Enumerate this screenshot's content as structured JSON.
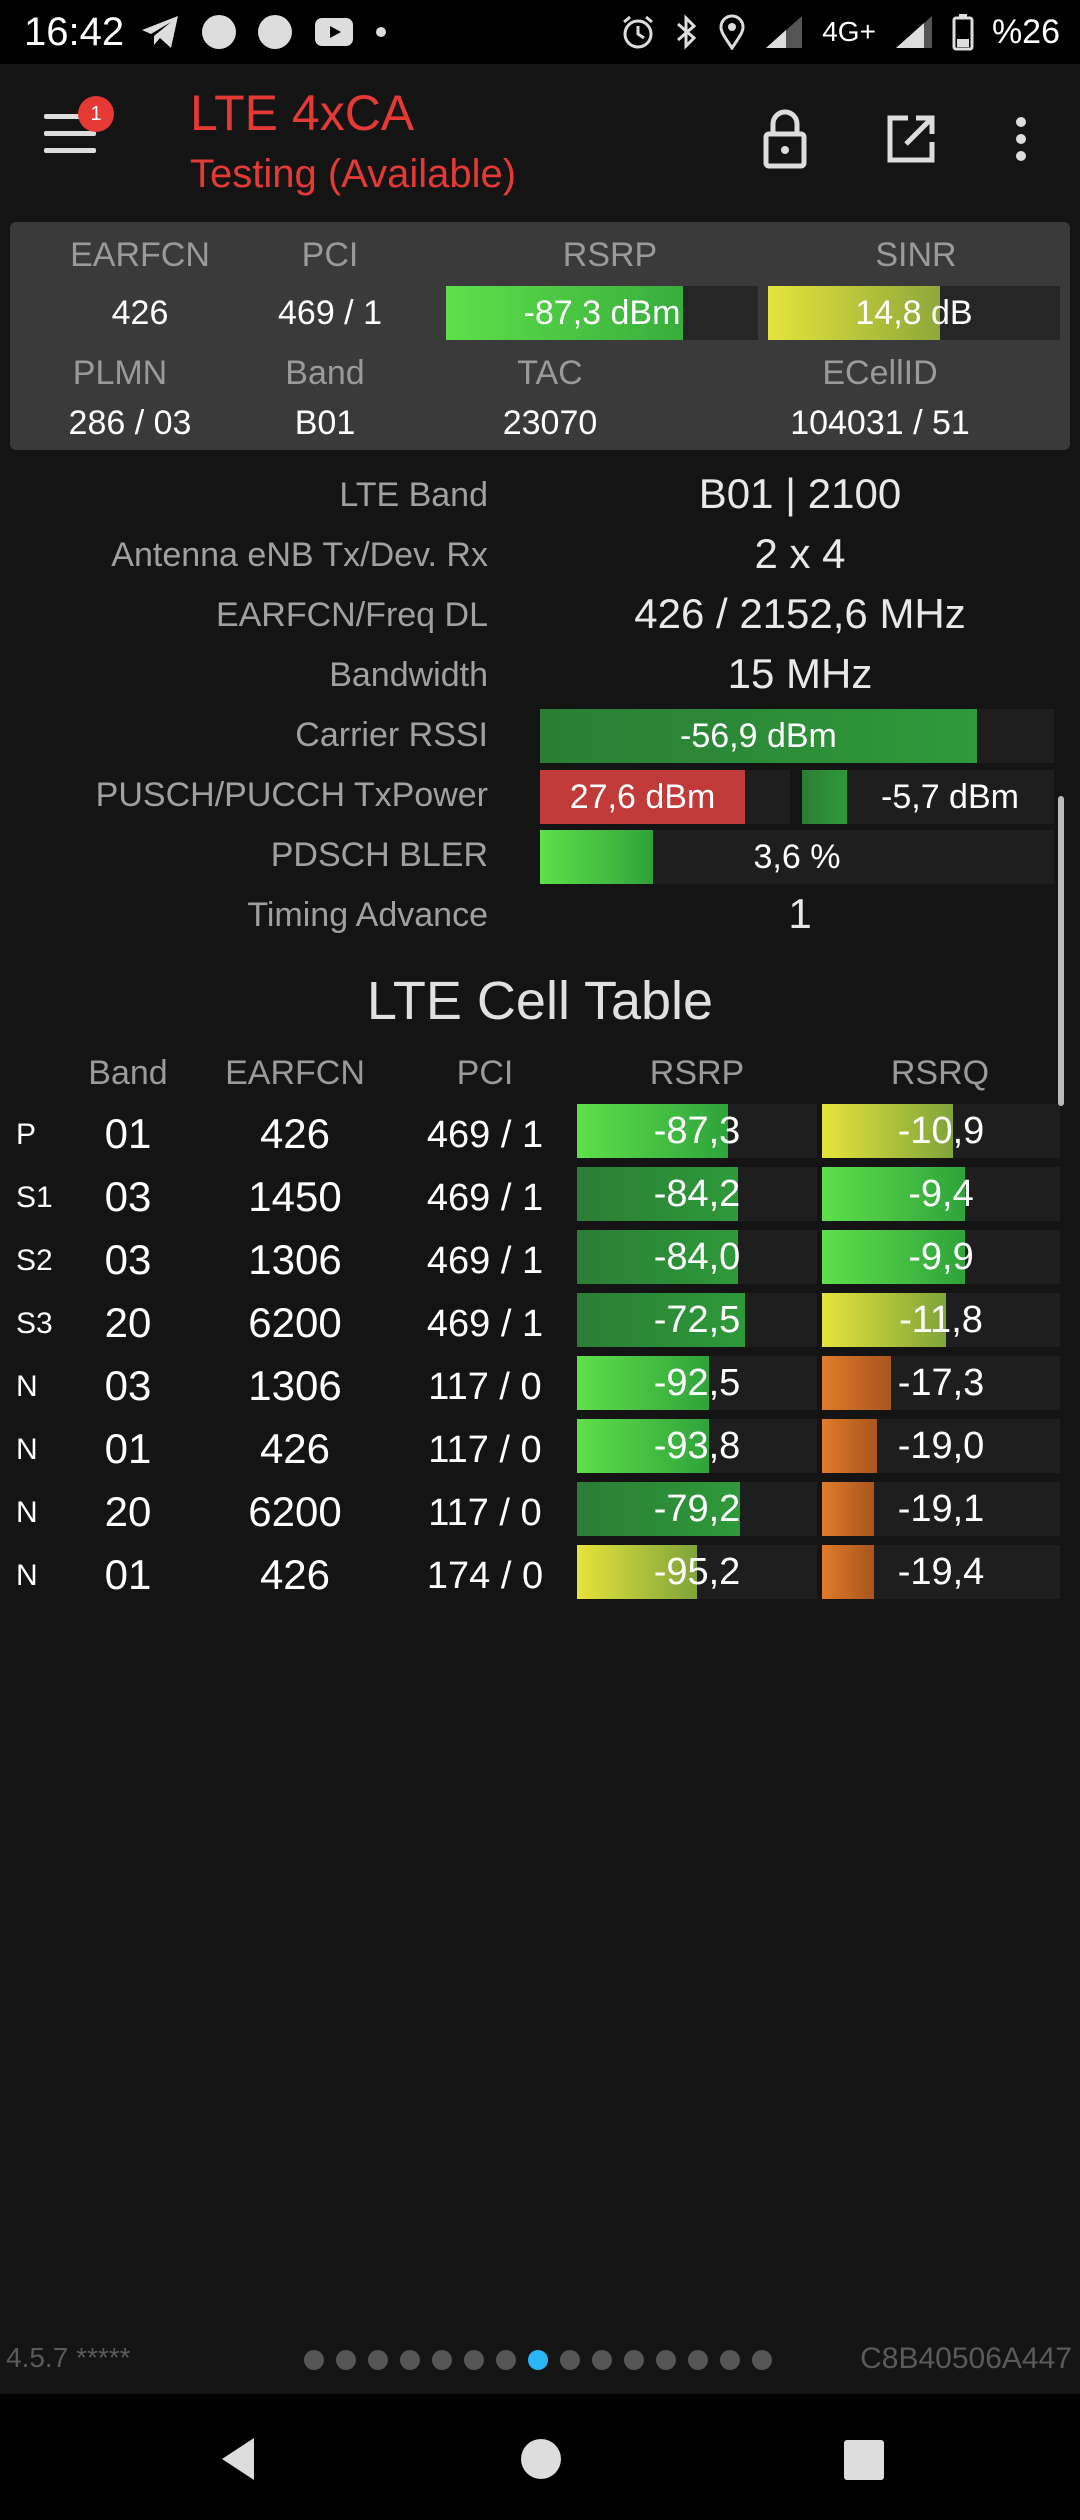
{
  "status_bar": {
    "time": "16:42",
    "network_label": "4G+",
    "battery_text": "%26",
    "icons": [
      "telegram-icon",
      "notification-dot-icon",
      "notification-dot-icon",
      "youtube-icon",
      "more-dot-icon",
      "alarm-icon",
      "bluetooth-icon",
      "location-icon",
      "signal-icon",
      "battery-icon"
    ]
  },
  "app_bar": {
    "title": "LTE 4xCA",
    "subtitle": "Testing (Available)",
    "notification_count": "1",
    "title_color": "#e53935"
  },
  "summary": {
    "headers": {
      "earfcn": "EARFCN",
      "pci": "PCI",
      "rsrp": "RSRP",
      "sinr": "SINR",
      "plmn": "PLMN",
      "band": "Band",
      "tac": "TAC",
      "ecellid": "ECellID"
    },
    "earfcn": "426",
    "pci": "469 / 1",
    "rsrp": "-87,3 dBm",
    "rsrp_fill": 0.76,
    "sinr": "14,8 dB",
    "sinr_fill": 0.59,
    "plmn": "286 / 03",
    "band": "B01",
    "tac": "23070",
    "ecellid": "104031 / 51"
  },
  "details": {
    "lte_band_label": "LTE Band",
    "lte_band": "B01 | 2100",
    "antenna_label": "Antenna eNB Tx/Dev. Rx",
    "antenna": "2 x 4",
    "freq_label": "EARFCN/Freq DL",
    "freq": "426 / 2152,6 MHz",
    "bandwidth_label": "Bandwidth",
    "bandwidth": "15 MHz",
    "rssi_label": "Carrier RSSI",
    "rssi": "-56,9 dBm",
    "rssi_fill": 0.85,
    "txpower_label": "PUSCH/PUCCH TxPower",
    "pusch": "27,6 dBm",
    "pusch_fill": 0.82,
    "pucch": "-5,7 dBm",
    "pucch_fill": 0.18,
    "bler_label": "PDSCH BLER",
    "bler": "3,6 %",
    "bler_fill": 0.22,
    "ta_label": "Timing Advance",
    "ta": "1"
  },
  "cell_table": {
    "title": "LTE Cell Table",
    "headers": {
      "band": "Band",
      "earfcn": "EARFCN",
      "pci": "PCI",
      "rsrp": "RSRP",
      "rsrq": "RSRQ"
    },
    "rows": [
      {
        "type": "P",
        "band": "01",
        "earfcn": "426",
        "pci": "469 / 1",
        "rsrp": "-87,3",
        "rsrp_fill": 0.63,
        "rsrp_color": "bright",
        "rsrq": "-10,9",
        "rsrq_fill": 0.55,
        "rsrq_color": "yellow"
      },
      {
        "type": "S1",
        "band": "03",
        "earfcn": "1450",
        "pci": "469 / 1",
        "rsrp": "-84,2",
        "rsrp_fill": 0.67,
        "rsrp_color": "dark",
        "rsrq": "-9,4",
        "rsrq_fill": 0.6,
        "rsrq_color": "green"
      },
      {
        "type": "S2",
        "band": "03",
        "earfcn": "1306",
        "pci": "469 / 1",
        "rsrp": "-84,0",
        "rsrp_fill": 0.67,
        "rsrp_color": "dark",
        "rsrq": "-9,9",
        "rsrq_fill": 0.6,
        "rsrq_color": "green"
      },
      {
        "type": "S3",
        "band": "20",
        "earfcn": "6200",
        "pci": "469 / 1",
        "rsrp": "-72,5",
        "rsrp_fill": 0.7,
        "rsrp_color": "dark",
        "rsrq": "-11,8",
        "rsrq_fill": 0.52,
        "rsrq_color": "yellow"
      },
      {
        "type": "N",
        "band": "03",
        "earfcn": "1306",
        "pci": "117 / 0",
        "rsrp": "-92,5",
        "rsrp_fill": 0.55,
        "rsrp_color": "bright",
        "rsrq": "-17,3",
        "rsrq_fill": 0.29,
        "rsrq_color": "orange"
      },
      {
        "type": "N",
        "band": "01",
        "earfcn": "426",
        "pci": "117 / 0",
        "rsrp": "-93,8",
        "rsrp_fill": 0.55,
        "rsrp_color": "bright",
        "rsrq": "-19,0",
        "rsrq_fill": 0.23,
        "rsrq_color": "orange"
      },
      {
        "type": "N",
        "band": "20",
        "earfcn": "6200",
        "pci": "117 / 0",
        "rsrp": "-79,2",
        "rsrp_fill": 0.68,
        "rsrp_color": "dark",
        "rsrq": "-19,1",
        "rsrq_fill": 0.22,
        "rsrq_color": "orange"
      },
      {
        "type": "N",
        "band": "01",
        "earfcn": "426",
        "pci": "174 / 0",
        "rsrp": "-95,2",
        "rsrp_fill": 0.5,
        "rsrp_color": "yellow",
        "rsrq": "-19,4",
        "rsrq_fill": 0.22,
        "rsrq_color": "orange"
      }
    ]
  },
  "footer": {
    "version": "4.5.7 *****",
    "device_id": "C8B40506A447",
    "page_count": 15,
    "active_page": 8
  },
  "colors": {
    "bright_green": "#5ee04a",
    "dark_green": "#2e9a3a",
    "yellow": "#d8dc3a",
    "orange": "#e07b2a",
    "red": "#c13a3a",
    "accent": "#29b6f6"
  }
}
